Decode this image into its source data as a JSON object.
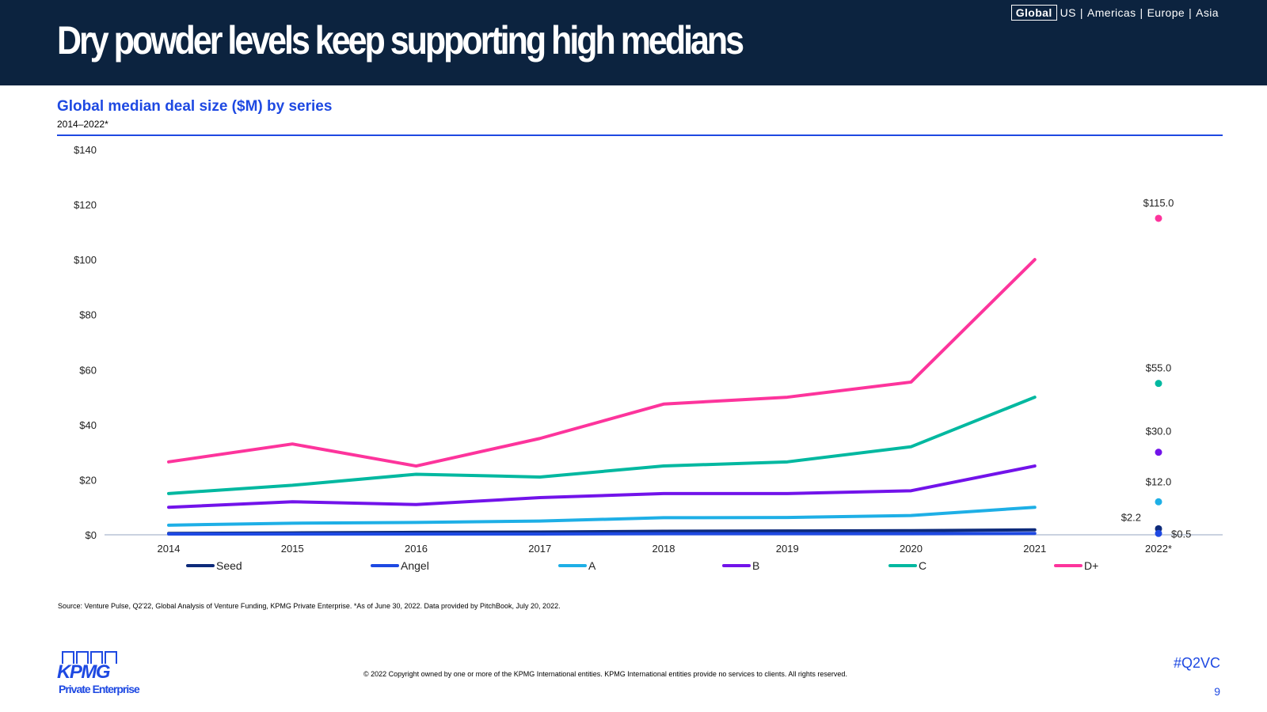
{
  "header": {
    "title": "Dry powder levels keep supporting high medians",
    "regions": [
      "Global",
      "US",
      "Americas",
      "Europe",
      "Asia"
    ],
    "active_region": "Global"
  },
  "colors": {
    "header_bg": "#0c233f",
    "accent_blue": "#1e49e2",
    "Seed": "#0d2a7a",
    "Angel": "#1e49e2",
    "A": "#1eafe6",
    "B": "#7213ea",
    "C": "#00b8a0",
    "D+": "#fd349c"
  },
  "chart_data": {
    "type": "line",
    "title": "Global median deal size ($M) by series",
    "subtitle": "2014–2022*",
    "xlabel": "",
    "ylabel": "",
    "ylim": [
      0,
      140
    ],
    "yticks": [
      "$0",
      "$20",
      "$40",
      "$60",
      "$80",
      "$100",
      "$120",
      "$140"
    ],
    "categories": [
      "2014",
      "2015",
      "2016",
      "2017",
      "2018",
      "2019",
      "2020",
      "2021",
      "2022*"
    ],
    "series": [
      {
        "name": "Seed",
        "values": [
          0.5,
          0.7,
          0.9,
          1.0,
          1.3,
          1.4,
          1.5,
          1.8,
          2.2
        ]
      },
      {
        "name": "Angel",
        "values": [
          0.3,
          0.3,
          0.3,
          0.3,
          0.4,
          0.4,
          0.4,
          0.5,
          0.5
        ]
      },
      {
        "name": "A",
        "values": [
          3.5,
          4.2,
          4.5,
          5.0,
          6.2,
          6.3,
          7.0,
          10.0,
          12.0
        ]
      },
      {
        "name": "B",
        "values": [
          10.0,
          12.0,
          11.0,
          13.5,
          15.0,
          15.0,
          16.0,
          25.0,
          30.0
        ]
      },
      {
        "name": "C",
        "values": [
          15.0,
          18.0,
          22.0,
          21.0,
          25.0,
          26.5,
          32.0,
          50.0,
          55.0
        ]
      },
      {
        "name": "D+",
        "values": [
          26.5,
          33.0,
          25.0,
          35.0,
          47.5,
          50.0,
          55.5,
          100.0,
          115.0
        ]
      }
    ],
    "data_labels": [
      {
        "series": "D+",
        "category": "2022*",
        "text": "$115.0"
      },
      {
        "series": "C",
        "category": "2022*",
        "text": "$55.0"
      },
      {
        "series": "B",
        "category": "2022*",
        "text": "$30.0"
      },
      {
        "series": "A",
        "category": "2022*",
        "text": "$12.0"
      },
      {
        "series": "Seed",
        "category": "2022*",
        "text": "$2.2"
      },
      {
        "series": "Angel",
        "category": "2022*",
        "text": "$0.5"
      }
    ],
    "legend_position": "bottom",
    "grid": false
  },
  "source_note": "Source: Venture Pulse, Q2'22, Global Analysis of Venture Funding, KPMG Private Enterprise. *As of June 30, 2022. Data provided by PitchBook, July 20, 2022.",
  "footer": {
    "logo_text": "KPMG",
    "logo_sub": "Private Enterprise",
    "copyright": "© 2022 Copyright owned by one or more of the KPMG International entities. KPMG International entities provide no services to clients. All rights reserved.",
    "hashtag": "#Q2VC",
    "page_number": "9"
  }
}
